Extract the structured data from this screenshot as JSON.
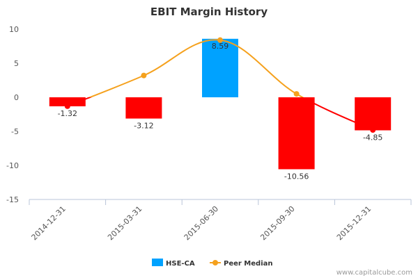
{
  "chart_data": {
    "type": "bar",
    "title": "EBIT Margin History",
    "categories": [
      "2014-12-31",
      "2015-03-31",
      "2015-06-30",
      "2015-09-30",
      "2015-12-31"
    ],
    "series": [
      {
        "name": "HSE-CA",
        "kind": "bar",
        "values": [
          -1.32,
          -3.12,
          8.59,
          -10.56,
          -4.85
        ],
        "labels": [
          "-1.32",
          "-3.12",
          "8.59",
          "-10.56",
          "-4.85"
        ],
        "color_positive": "#00a2ff",
        "color_negative": "#ff0000"
      },
      {
        "name": "Peer Median",
        "kind": "line",
        "values": [
          -1.3,
          3.2,
          8.4,
          0.5,
          -4.8
        ],
        "color": "#f5a11d",
        "color_below_zero": "#ff0000"
      }
    ],
    "ylim": [
      -15,
      10
    ],
    "yticks": [
      10,
      5,
      0,
      -5,
      -10,
      -15
    ],
    "xlabel": "",
    "ylabel": "",
    "legend": {
      "position": "bottom"
    },
    "grid": false
  },
  "watermark": "www.capitalcube.com"
}
